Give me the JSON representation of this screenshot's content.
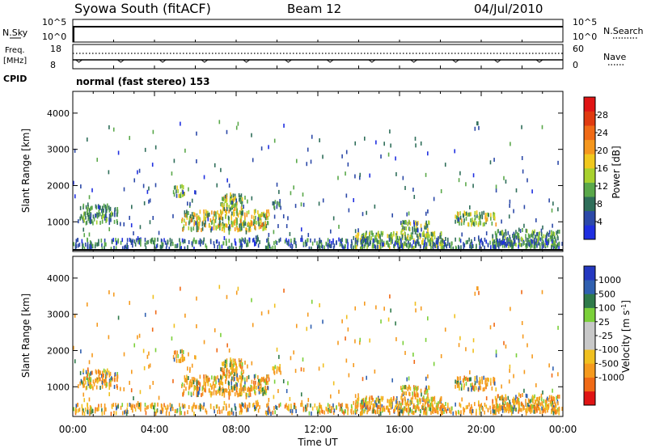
{
  "header": {
    "station": "Syowa South (fitACF)",
    "beam": "Beam 12",
    "date": "04/Jul/2010"
  },
  "noise_panel": {
    "left_label": "N.Sky",
    "right_label": "N.Search",
    "left_ticks": [
      "10^5",
      "10^0"
    ],
    "right_ticks": [
      "10^5",
      "10^0"
    ]
  },
  "freq_panel": {
    "left_label_1": "Freq.",
    "left_label_2": "[MHz]",
    "right_label": "Nave",
    "left_ticks": [
      "18",
      "8"
    ],
    "right_ticks": [
      "60",
      "0"
    ]
  },
  "cpid": {
    "label": "CPID",
    "text": "normal (fast stereo) 153"
  },
  "colors": {
    "power": [
      "#1f2fe0",
      "#2c49a8",
      "#2f6e5a",
      "#5aa84a",
      "#a8d12e",
      "#f0c81e",
      "#f5971e",
      "#f06a16",
      "#e03a10",
      "#e01414"
    ],
    "velocity": [
      "#e01414",
      "#f06a16",
      "#f59a1e",
      "#f0c020",
      "#c8c8c8",
      "#c8c8c8",
      "#7bd03a",
      "#2f7a4a",
      "#3060b0",
      "#2438c0"
    ]
  },
  "chart_data": [
    {
      "type": "heatmap",
      "quantity": "power",
      "xlabel": "",
      "ylabel": "Slant Range [km]",
      "yticks": [
        1000,
        2000,
        3000,
        4000
      ],
      "ylim": [
        180,
        4600
      ],
      "xlim": [
        0,
        24
      ],
      "colorbar": {
        "label": "Power [dB]",
        "range": [
          0,
          32
        ],
        "tick_labels": [
          "4",
          "8",
          "12",
          "16",
          "20",
          "24",
          "28"
        ],
        "tick_values": [
          4,
          8,
          12,
          16,
          20,
          24,
          28
        ]
      },
      "echo_regions": [
        {
          "t0": 0.3,
          "t1": 2.2,
          "r0": 900,
          "r1": 1400,
          "level": 0.35
        },
        {
          "t0": 4.9,
          "t1": 5.5,
          "r0": 1650,
          "r1": 1950,
          "level": 0.45
        },
        {
          "t0": 5.3,
          "t1": 9.6,
          "r0": 700,
          "r1": 1250,
          "level": 0.55
        },
        {
          "t0": 7.2,
          "t1": 8.3,
          "r0": 1150,
          "r1": 1700,
          "level": 0.5
        },
        {
          "t0": 9.7,
          "t1": 10.2,
          "r0": 1300,
          "r1": 1550,
          "level": 0.3
        },
        {
          "t0": 13.8,
          "t1": 18.2,
          "r0": 200,
          "r1": 650,
          "level": 0.45
        },
        {
          "t0": 16.0,
          "t1": 17.5,
          "r0": 700,
          "r1": 950,
          "level": 0.45
        },
        {
          "t0": 18.7,
          "t1": 20.7,
          "r0": 850,
          "r1": 1200,
          "level": 0.5
        },
        {
          "t0": 20.5,
          "t1": 23.8,
          "r0": 250,
          "r1": 700,
          "level": 0.35
        }
      ]
    },
    {
      "type": "heatmap",
      "quantity": "velocity",
      "xlabel": "Time UT",
      "ylabel": "Slant Range [km]",
      "yticks": [
        1000,
        2000,
        3000,
        4000
      ],
      "ylim": [
        180,
        4600
      ],
      "xlim": [
        0,
        24
      ],
      "xtick_labels": [
        "00:00",
        "04:00",
        "08:00",
        "12:00",
        "16:00",
        "20:00",
        "00:00"
      ],
      "xtick_values": [
        0,
        4,
        8,
        12,
        16,
        20,
        24
      ],
      "colorbar": {
        "label": "Velocity [m s^-1]",
        "tick_labels": [
          "1000",
          "500",
          "100",
          "25",
          "-25",
          "-100",
          "-500",
          "-1000"
        ],
        "tick_values": [
          1000,
          500,
          100,
          25,
          -25,
          -100,
          -500,
          -1000
        ]
      }
    }
  ]
}
